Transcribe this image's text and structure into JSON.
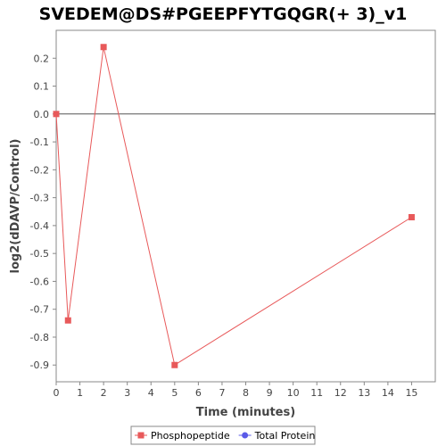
{
  "chart_data": {
    "type": "line",
    "title": "SVEDEM@DS#PGEEPFYTGQGR(+ 3)_v1",
    "xlabel": "Time (minutes)",
    "ylabel": "log2(dDAVP/Control)",
    "xlim": [
      0,
      16
    ],
    "ylim": [
      -0.96,
      0.3
    ],
    "x_ticks": [
      0,
      1,
      2,
      3,
      4,
      5,
      6,
      7,
      8,
      9,
      10,
      11,
      12,
      13,
      14,
      15
    ],
    "y_ticks": [
      0.2,
      0.1,
      0.0,
      -0.1,
      -0.2,
      -0.3,
      -0.4,
      -0.5,
      -0.6,
      -0.7,
      -0.8,
      -0.9
    ],
    "zero_line": true,
    "grid": false,
    "legend_position": "bottom",
    "series": [
      {
        "name": "Phosphopeptide",
        "color": "#e8595a",
        "marker": "square",
        "x": [
          0,
          0.5,
          2,
          5,
          15
        ],
        "y": [
          0.0,
          -0.74,
          0.24,
          -0.9,
          -0.37
        ]
      },
      {
        "name": "Total Protein",
        "color": "#5a5ae8",
        "marker": "circle",
        "x": [],
        "y": []
      }
    ]
  }
}
